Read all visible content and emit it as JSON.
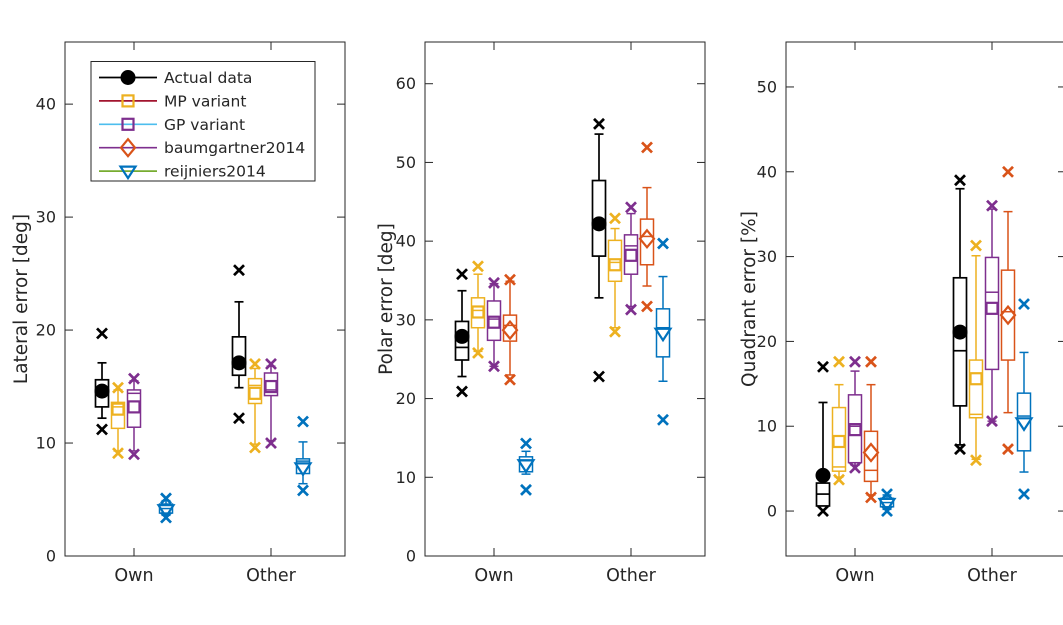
{
  "figure": {
    "background": "#ffffff",
    "axis_color": "#262626",
    "text_color": "#262626"
  },
  "legend": {
    "position": "top-left-first-subplot",
    "items": [
      {
        "label": "Actual data",
        "line_color": "#000000",
        "marker": "circle-filled",
        "marker_color": "#000000"
      },
      {
        "label": "MP variant",
        "line_color": "#A2142F",
        "marker": "square",
        "marker_color": "#EDB120"
      },
      {
        "label": "GP variant",
        "line_color": "#4DBEEE",
        "marker": "square",
        "marker_color": "#7E2F8E"
      },
      {
        "label": "baumgartner2014",
        "line_color": "#7E2F8E",
        "marker": "diamond",
        "marker_color": "#D95319"
      },
      {
        "label": "reijniers2014",
        "line_color": "#77AC30",
        "marker": "triangle-down",
        "marker_color": "#0072BD"
      }
    ]
  },
  "chart_data": [
    {
      "type": "boxplot",
      "ylabel": "Lateral error [deg]",
      "ylim": [
        0,
        45.5
      ],
      "yticks": [
        0,
        10,
        20,
        30,
        40
      ],
      "categories": [
        "Own",
        "Other"
      ],
      "grid": false,
      "series": [
        {
          "name": "Actual data",
          "color": "#000000",
          "marker": "circle-filled",
          "data": [
            {
              "whislo": 12.2,
              "q1": 13.2,
              "med": 14.8,
              "q3": 15.6,
              "whishi": 17.1,
              "mean": 14.6,
              "outliers": [
                19.7,
                11.2
              ]
            },
            {
              "whislo": 14.9,
              "q1": 16.0,
              "med": 17.0,
              "q3": 19.4,
              "whishi": 22.5,
              "mean": 17.1,
              "outliers": [
                25.3,
                12.2
              ]
            }
          ]
        },
        {
          "name": "MP variant",
          "color": "#EDB120",
          "marker": "square",
          "data": [
            {
              "whislo": 9.3,
              "q1": 11.3,
              "med": 13.2,
              "q3": 13.6,
              "whishi": 14.7,
              "mean": 13.0,
              "outliers": [
                14.9,
                9.1
              ]
            },
            {
              "whislo": 9.9,
              "q1": 13.5,
              "med": 15.1,
              "q3": 15.7,
              "whishi": 16.6,
              "mean": 14.4,
              "outliers": [
                17.0,
                9.6
              ]
            }
          ]
        },
        {
          "name": "GP variant",
          "color": "#7E2F8E",
          "marker": "square",
          "data": [
            {
              "whislo": 9.3,
              "q1": 11.4,
              "med": 14.4,
              "q3": 14.7,
              "whishi": 15.5,
              "mean": 13.2,
              "outliers": [
                15.7,
                9.0
              ]
            },
            {
              "whislo": 10.2,
              "q1": 14.2,
              "med": 14.7,
              "q3": 16.2,
              "whishi": 16.8,
              "mean": 15.0,
              "outliers": [
                17.0,
                10.0
              ]
            }
          ]
        },
        {
          "name": "baumgartner2014",
          "color": "#D95319",
          "marker": "diamond",
          "data": [
            null,
            null
          ]
        },
        {
          "name": "reijniers2014",
          "color": "#0072BD",
          "marker": "triangle-down",
          "data": [
            {
              "whislo": 3.6,
              "q1": 3.8,
              "med": 4.2,
              "q3": 4.6,
              "whishi": 4.9,
              "mean": 4.1,
              "outliers": [
                5.1,
                3.4
              ]
            },
            {
              "whislo": 6.4,
              "q1": 7.3,
              "med": 8.4,
              "q3": 8.6,
              "whishi": 10.1,
              "mean": 7.8,
              "outliers": [
                11.9,
                5.8
              ]
            }
          ]
        }
      ]
    },
    {
      "type": "boxplot",
      "ylabel": "Polar error [deg]",
      "ylim": [
        0,
        65.3
      ],
      "yticks": [
        0,
        10,
        20,
        30,
        40,
        50,
        60
      ],
      "categories": [
        "Own",
        "Other"
      ],
      "grid": false,
      "series": [
        {
          "name": "Actual data",
          "color": "#000000",
          "marker": "circle-filled",
          "data": [
            {
              "whislo": 22.8,
              "q1": 24.9,
              "med": 26.5,
              "q3": 29.8,
              "whishi": 33.7,
              "mean": 27.9,
              "outliers": [
                35.8,
                20.9
              ]
            },
            {
              "whislo": 32.8,
              "q1": 38.1,
              "med": 42.5,
              "q3": 47.7,
              "whishi": 53.6,
              "mean": 42.2,
              "outliers": [
                54.9,
                22.8
              ]
            }
          ]
        },
        {
          "name": "MP variant",
          "color": "#EDB120",
          "marker": "square",
          "data": [
            {
              "whislo": 26.0,
              "q1": 29.0,
              "med": 31.2,
              "q3": 32.8,
              "whishi": 35.8,
              "mean": 31.0,
              "outliers": [
                36.8,
                25.8
              ]
            },
            {
              "whislo": 29.0,
              "q1": 34.9,
              "med": 37.3,
              "q3": 40.1,
              "whishi": 41.6,
              "mean": 37.0,
              "outliers": [
                42.9,
                28.5
              ]
            }
          ]
        },
        {
          "name": "GP variant",
          "color": "#7E2F8E",
          "marker": "square",
          "data": [
            {
              "whislo": 24.1,
              "q1": 27.4,
              "med": 30.1,
              "q3": 32.4,
              "whishi": 34.6,
              "mean": 29.7,
              "outliers": [
                34.7,
                24.1
              ]
            },
            {
              "whislo": 31.7,
              "q1": 35.8,
              "med": 39.4,
              "q3": 40.8,
              "whishi": 43.5,
              "mean": 38.2,
              "outliers": [
                44.3,
                31.3
              ]
            }
          ]
        },
        {
          "name": "baumgartner2014",
          "color": "#D95319",
          "marker": "diamond",
          "data": [
            {
              "whislo": 23.0,
              "q1": 27.3,
              "med": 29.3,
              "q3": 30.6,
              "whishi": 34.9,
              "mean": 28.7,
              "outliers": [
                35.1,
                22.4
              ]
            },
            {
              "whislo": 34.3,
              "q1": 37.0,
              "med": 40.6,
              "q3": 42.8,
              "whishi": 46.8,
              "mean": 40.3,
              "outliers": [
                51.9,
                31.7
              ]
            }
          ]
        },
        {
          "name": "reijniers2014",
          "color": "#0072BD",
          "marker": "triangle-down",
          "data": [
            {
              "whislo": 10.4,
              "q1": 10.7,
              "med": 12.1,
              "q3": 12.6,
              "whishi": 13.3,
              "mean": 11.6,
              "outliers": [
                14.3,
                8.4
              ]
            },
            {
              "whislo": 22.2,
              "q1": 25.3,
              "med": 29.0,
              "q3": 31.4,
              "whishi": 35.5,
              "mean": 28.3,
              "outliers": [
                39.7,
                17.3
              ]
            }
          ]
        }
      ]
    },
    {
      "type": "boxplot",
      "ylabel": "Quadrant error [%]",
      "ylim": [
        -5.3,
        55.3
      ],
      "yticks": [
        0,
        10,
        20,
        30,
        40,
        50
      ],
      "categories": [
        "Own",
        "Other"
      ],
      "grid": false,
      "series": [
        {
          "name": "Actual data",
          "color": "#000000",
          "marker": "circle-filled",
          "data": [
            {
              "whislo": 0.6,
              "q1": 0.6,
              "med": 2.0,
              "q3": 3.3,
              "whishi": 12.8,
              "mean": 4.2,
              "outliers": [
                17.0,
                0.0
              ]
            },
            {
              "whislo": 7.8,
              "q1": 12.4,
              "med": 18.9,
              "q3": 27.5,
              "whishi": 38.0,
              "mean": 21.1,
              "outliers": [
                39.0,
                7.3
              ]
            }
          ]
        },
        {
          "name": "MP variant",
          "color": "#EDB120",
          "marker": "square",
          "data": [
            {
              "whislo": 4.0,
              "q1": 4.7,
              "med": 5.2,
              "q3": 12.2,
              "whishi": 14.9,
              "mean": 8.2,
              "outliers": [
                17.6,
                3.7
              ]
            },
            {
              "whislo": 6.1,
              "q1": 11.0,
              "med": 11.4,
              "q3": 17.8,
              "whishi": 30.1,
              "mean": 15.6,
              "outliers": [
                31.3,
                6.0
              ]
            }
          ]
        },
        {
          "name": "GP variant",
          "color": "#7E2F8E",
          "marker": "square",
          "data": [
            {
              "whislo": 5.4,
              "q1": 5.7,
              "med": 10.0,
              "q3": 13.7,
              "whishi": 16.5,
              "mean": 9.6,
              "outliers": [
                17.6,
                5.1
              ]
            },
            {
              "whislo": 10.6,
              "q1": 16.7,
              "med": 25.8,
              "q3": 29.9,
              "whishi": 35.6,
              "mean": 23.9,
              "outliers": [
                36.0,
                10.6
              ]
            }
          ]
        },
        {
          "name": "baumgartner2014",
          "color": "#D95319",
          "marker": "diamond",
          "data": [
            {
              "whislo": 1.9,
              "q1": 3.5,
              "med": 4.8,
              "q3": 9.4,
              "whishi": 14.9,
              "mean": 6.9,
              "outliers": [
                17.6,
                1.6
              ]
            },
            {
              "whislo": 11.6,
              "q1": 17.8,
              "med": 23.5,
              "q3": 28.4,
              "whishi": 35.3,
              "mean": 23.1,
              "outliers": [
                40.0,
                7.3
              ]
            }
          ]
        },
        {
          "name": "reijniers2014",
          "color": "#0072BD",
          "marker": "triangle-down",
          "data": [
            {
              "whislo": 0.2,
              "q1": 0.5,
              "med": 1.0,
              "q3": 1.5,
              "whishi": 1.9,
              "mean": 0.9,
              "outliers": [
                2.0,
                0.0
              ]
            },
            {
              "whislo": 4.6,
              "q1": 7.1,
              "med": 11.2,
              "q3": 13.9,
              "whishi": 18.7,
              "mean": 10.4,
              "outliers": [
                24.4,
                2.0
              ]
            }
          ]
        }
      ]
    }
  ]
}
